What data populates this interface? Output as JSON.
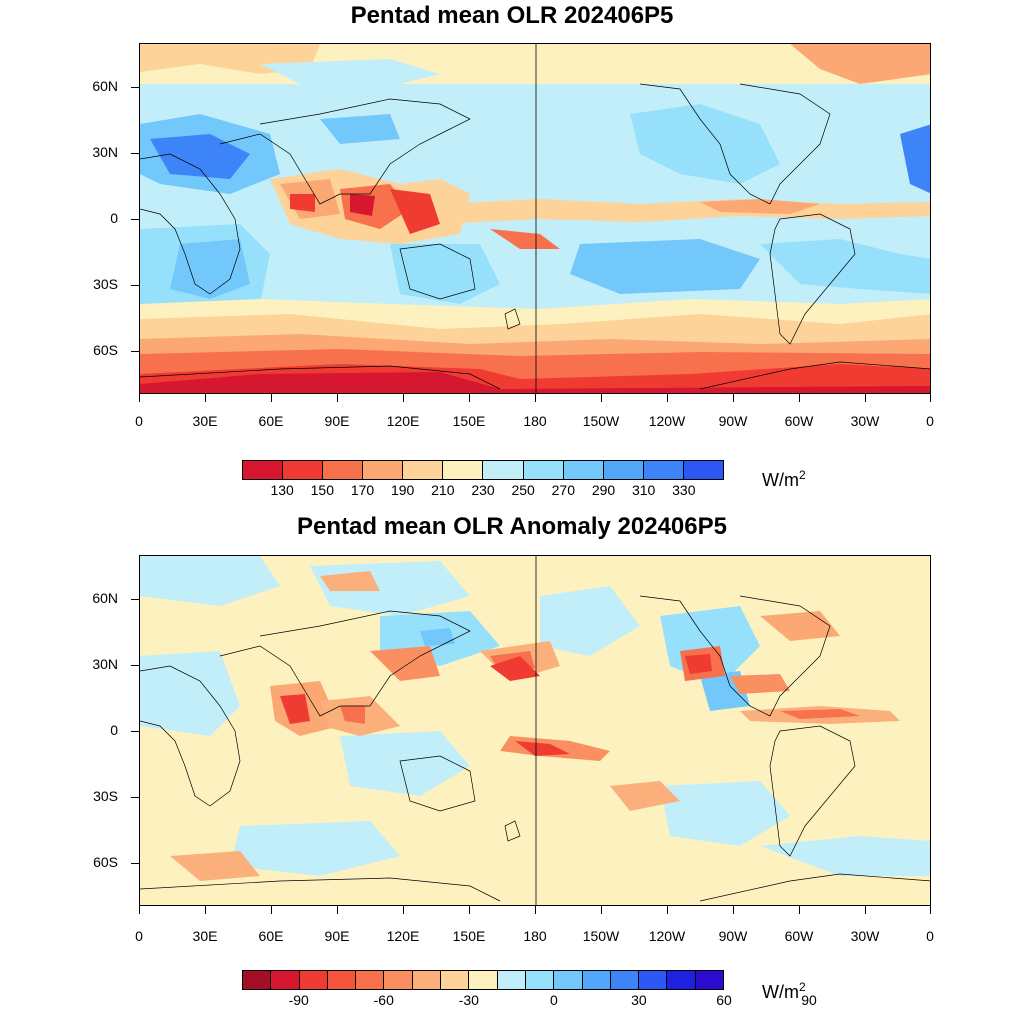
{
  "maps": [
    {
      "title": "Pentad mean OLR 202406P5",
      "colorbar": {
        "colors": [
          "#d7172f",
          "#f03b32",
          "#f7714d",
          "#fba874",
          "#fdd39a",
          "#fdf2bf",
          "#c2eefa",
          "#97e0fb",
          "#72c8fb",
          "#53a7fa",
          "#3d84f9",
          "#2c59f5"
        ],
        "labels": [
          "130",
          "150",
          "170",
          "190",
          "210",
          "230",
          "250",
          "270",
          "290",
          "310",
          "330"
        ],
        "unit_base": "W/m",
        "unit_exp": "2"
      }
    },
    {
      "title": "Pentad mean OLR Anomaly 202406P5",
      "colorbar": {
        "colors": [
          "#a50f26",
          "#d7172f",
          "#f03b32",
          "#f5553a",
          "#f7714d",
          "#fa9061",
          "#fbb07c",
          "#fdd39a",
          "#fdf2bf",
          "#c2eefa",
          "#97e0fb",
          "#72c8fb",
          "#53a7fa",
          "#3d84f9",
          "#2c59f5",
          "#1c22e0",
          "#2a0cd0"
        ],
        "labels": [
          "-90",
          "-60",
          "-30",
          "0",
          "30",
          "60",
          "90"
        ],
        "unit_base": "W/m",
        "unit_exp": "2"
      }
    }
  ],
  "x_ticks": [
    "0",
    "30E",
    "60E",
    "90E",
    "120E",
    "150E",
    "180",
    "150W",
    "120W",
    "90W",
    "60W",
    "30W",
    "0"
  ],
  "y_ticks": [
    "60N",
    "30N",
    "0",
    "30S",
    "60S"
  ]
}
